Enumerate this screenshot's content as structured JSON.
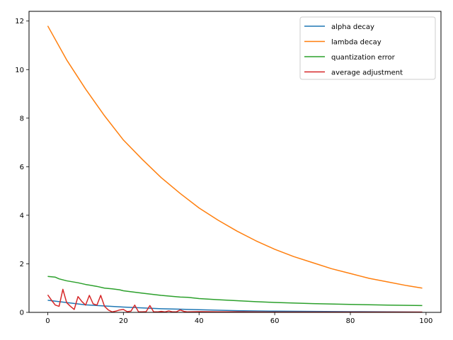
{
  "chart_data": {
    "type": "line",
    "title": "",
    "xlabel": "",
    "ylabel": "",
    "xlim": [
      -4.95,
      103.95
    ],
    "ylim": [
      0,
      12.4
    ],
    "x_ticks": [
      0,
      20,
      40,
      60,
      80,
      100
    ],
    "y_ticks": [
      0,
      2,
      4,
      6,
      8,
      10,
      12
    ],
    "grid": false,
    "legend_position": "top-right",
    "series": [
      {
        "name": "alpha decay",
        "color": "#1f77b4",
        "x": [
          0,
          10,
          20,
          30,
          40,
          50,
          60,
          70,
          80,
          90,
          99
        ],
        "y": [
          0.5,
          0.31,
          0.22,
          0.15,
          0.11,
          0.07,
          0.05,
          0.04,
          0.03,
          0.02,
          0.01
        ]
      },
      {
        "name": "lambda decay",
        "color": "#ff7f0e",
        "x": [
          0,
          5,
          10,
          15,
          20,
          25,
          30,
          35,
          40,
          45,
          50,
          55,
          60,
          65,
          70,
          75,
          80,
          85,
          90,
          95,
          99
        ],
        "y": [
          11.8,
          10.4,
          9.2,
          8.1,
          7.1,
          6.3,
          5.55,
          4.9,
          4.3,
          3.8,
          3.35,
          2.95,
          2.6,
          2.3,
          2.05,
          1.8,
          1.6,
          1.4,
          1.25,
          1.1,
          1.0
        ]
      },
      {
        "name": "quantization error",
        "color": "#2ca02c",
        "x": [
          0,
          2,
          3,
          5,
          8,
          10,
          13,
          15,
          17,
          19,
          20,
          25,
          30,
          35,
          37,
          40,
          45,
          50,
          55,
          60,
          70,
          80,
          90,
          99
        ],
        "y": [
          1.48,
          1.45,
          1.38,
          1.3,
          1.22,
          1.15,
          1.07,
          1.0,
          0.97,
          0.93,
          0.89,
          0.79,
          0.7,
          0.63,
          0.62,
          0.57,
          0.52,
          0.48,
          0.44,
          0.41,
          0.36,
          0.33,
          0.3,
          0.28
        ]
      },
      {
        "name": "average adjustment",
        "color": "#d62728",
        "x": [
          0,
          1,
          2,
          3,
          4,
          5,
          6,
          7,
          8,
          9,
          10,
          11,
          12,
          13,
          14,
          15,
          16,
          17,
          18,
          19,
          20,
          21,
          22,
          23,
          24,
          25,
          26,
          27,
          28,
          29,
          30,
          31,
          32,
          33,
          34,
          35,
          36,
          37,
          40,
          45,
          50,
          60,
          70,
          80,
          90,
          99
        ],
        "y": [
          0.72,
          0.5,
          0.3,
          0.25,
          0.95,
          0.4,
          0.25,
          0.12,
          0.65,
          0.45,
          0.3,
          0.7,
          0.35,
          0.3,
          0.7,
          0.25,
          0.1,
          0.02,
          0.05,
          0.1,
          0.12,
          0.03,
          0.05,
          0.3,
          0.02,
          0.02,
          0.03,
          0.28,
          0.02,
          0.02,
          0.04,
          0.02,
          0.06,
          0.02,
          0.02,
          0.1,
          0.04,
          0.02,
          0.03,
          0.02,
          0.02,
          0.01,
          0.01,
          0.01,
          0.01,
          0.01
        ]
      }
    ]
  }
}
